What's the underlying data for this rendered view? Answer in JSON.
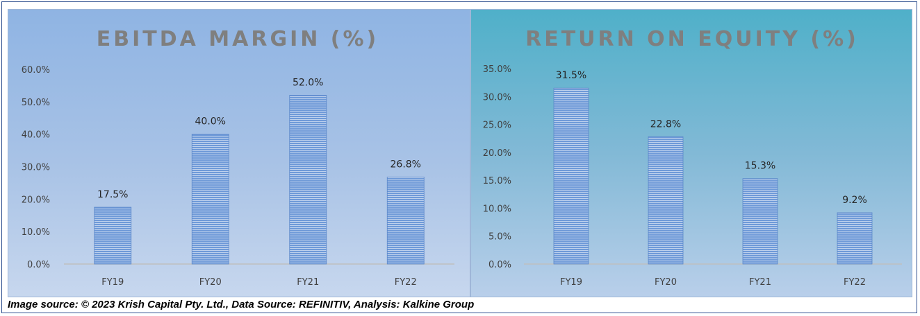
{
  "caption": "Image source: © 2023 Krish Capital Pty. Ltd., Data Source: REFINITIV, Analysis: Kalkine Group",
  "colors": {
    "bar_fill": "#6f9ad8",
    "bar_stripe": "#ffffff",
    "axis": "#bfbfbf"
  },
  "chart_data": [
    {
      "type": "bar",
      "title": "EBITDA MARGIN (%)",
      "categories": [
        "FY19",
        "FY20",
        "FY21",
        "FY22"
      ],
      "values": [
        17.5,
        40.0,
        52.0,
        26.8
      ],
      "data_labels": [
        "17.5%",
        "40.0%",
        "52.0%",
        "26.8%"
      ],
      "ylim": [
        0,
        60
      ],
      "yticks": [
        0,
        10,
        20,
        30,
        40,
        50,
        60
      ],
      "ytick_labels": [
        "0.0%",
        "10.0%",
        "20.0%",
        "30.0%",
        "40.0%",
        "50.0%",
        "60.0%"
      ],
      "grid": false,
      "legend": "none"
    },
    {
      "type": "bar",
      "title": "RETURN ON EQUITY (%)",
      "categories": [
        "FY19",
        "FY20",
        "FY21",
        "FY22"
      ],
      "values": [
        31.5,
        22.8,
        15.3,
        9.2
      ],
      "data_labels": [
        "31.5%",
        "22.8%",
        "15.3%",
        "9.2%"
      ],
      "ylim": [
        0,
        35
      ],
      "yticks": [
        0,
        5,
        10,
        15,
        20,
        25,
        30,
        35
      ],
      "ytick_labels": [
        "0.0%",
        "5.0%",
        "10.0%",
        "15.0%",
        "20.0%",
        "25.0%",
        "30.0%",
        "35.0%"
      ],
      "grid": false,
      "legend": "none"
    }
  ]
}
